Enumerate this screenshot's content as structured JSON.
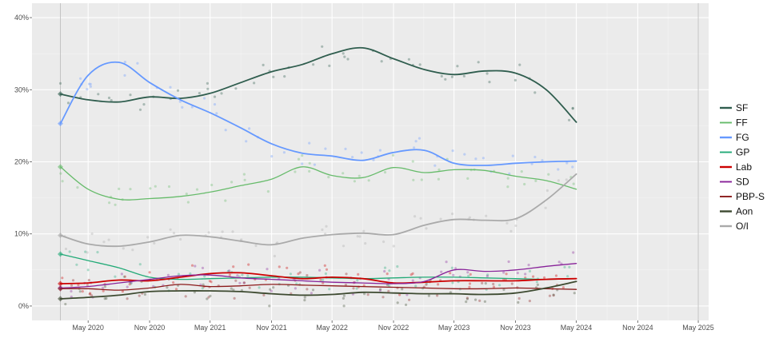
{
  "chart_data": {
    "type": "line",
    "title": "",
    "xlabel": "",
    "ylabel": "",
    "x_dates": [
      "2020-02-08",
      "2020-05-01",
      "2020-08-01",
      "2020-11-01",
      "2021-02-01",
      "2021-05-01",
      "2021-08-01",
      "2021-11-01",
      "2022-02-01",
      "2022-05-01",
      "2022-08-01",
      "2022-11-01",
      "2023-02-01",
      "2023-05-01",
      "2023-08-01",
      "2023-11-01",
      "2024-02-01",
      "2024-05-01"
    ],
    "x_ticks": [
      "May 2020",
      "Nov 2020",
      "May 2021",
      "Nov 2021",
      "May 2022",
      "Nov 2022",
      "May 2023",
      "Nov 2023",
      "May 2024",
      "Nov 2024",
      "May 2025"
    ],
    "x_tick_dates": [
      "2020-05-01",
      "2020-11-01",
      "2021-05-01",
      "2021-11-01",
      "2022-05-01",
      "2022-11-01",
      "2023-05-01",
      "2023-11-01",
      "2024-05-01",
      "2024-11-01",
      "2025-05-01"
    ],
    "xlim": [
      "2019-11-15",
      "2025-06-01"
    ],
    "reference_dates": [
      "2020-02-08",
      "2025-05-01"
    ],
    "y_ticks": [
      "0%",
      "10%",
      "20%",
      "30%",
      "40%"
    ],
    "y_tick_values": [
      0,
      10,
      20,
      30,
      40
    ],
    "ylim": [
      -2,
      42
    ],
    "grid": true,
    "legend_position": "right",
    "series": [
      {
        "name": "SF",
        "color": "#2f5d4e",
        "width": 1.8,
        "values": [
          29.4,
          28.6,
          28.3,
          29.0,
          28.8,
          29.5,
          31.0,
          32.5,
          33.5,
          35.0,
          35.8,
          34.3,
          32.8,
          32.1,
          32.6,
          32.3,
          30.0,
          25.5
        ]
      },
      {
        "name": "FF",
        "color": "#66bb6a",
        "width": 1.3,
        "values": [
          19.3,
          16.2,
          14.8,
          14.9,
          15.2,
          15.8,
          16.7,
          17.6,
          19.3,
          18.1,
          17.8,
          19.2,
          18.5,
          18.9,
          18.8,
          18.0,
          17.4,
          16.2
        ]
      },
      {
        "name": "FG",
        "color": "#6699ff",
        "width": 1.8,
        "values": [
          25.3,
          32.0,
          33.8,
          31.0,
          28.6,
          26.8,
          24.7,
          22.5,
          21.2,
          20.8,
          20.2,
          21.3,
          21.6,
          19.8,
          19.5,
          19.8,
          20.0,
          20.1
        ]
      },
      {
        "name": "GP",
        "color": "#22aa77",
        "width": 1.3,
        "values": [
          7.2,
          6.3,
          5.3,
          4.0,
          3.7,
          3.8,
          3.9,
          4.0,
          4.0,
          3.9,
          3.8,
          3.9,
          4.0,
          4.0,
          3.9,
          3.8,
          3.7,
          3.8
        ]
      },
      {
        "name": "Lab",
        "color": "#cc0000",
        "width": 1.8,
        "values": [
          3.1,
          3.2,
          3.6,
          3.5,
          4.0,
          4.5,
          4.6,
          4.2,
          3.8,
          4.0,
          3.8,
          3.2,
          3.3,
          3.5,
          3.5,
          3.5,
          3.7,
          3.8
        ]
      },
      {
        "name": "SD",
        "color": "#882299",
        "width": 1.3,
        "values": [
          2.5,
          2.7,
          3.2,
          3.7,
          4.2,
          4.3,
          3.9,
          3.7,
          3.5,
          3.3,
          3.2,
          3.1,
          3.4,
          5.0,
          4.8,
          5.0,
          5.5,
          5.9
        ]
      },
      {
        "name": "PBP-S",
        "color": "#8b1a1a",
        "width": 1.3,
        "values": [
          2.4,
          2.4,
          2.2,
          2.5,
          3.0,
          2.7,
          2.8,
          3.0,
          2.9,
          2.8,
          2.7,
          2.6,
          2.5,
          2.4,
          2.4,
          2.5,
          2.4,
          2.3
        ]
      },
      {
        "name": "Aon",
        "color": "#3d4a30",
        "width": 1.8,
        "values": [
          1.0,
          1.2,
          1.5,
          2.0,
          2.1,
          2.1,
          2.0,
          1.7,
          1.5,
          1.6,
          1.9,
          1.8,
          1.7,
          1.7,
          1.6,
          1.8,
          2.5,
          3.4
        ]
      },
      {
        "name": "O/I",
        "color": "#aaaaaa",
        "width": 1.8,
        "values": [
          9.8,
          8.6,
          8.3,
          8.9,
          9.8,
          9.6,
          9.0,
          8.5,
          9.4,
          9.9,
          10.1,
          9.9,
          11.2,
          12.0,
          11.9,
          12.1,
          14.7,
          18.3
        ]
      }
    ]
  }
}
